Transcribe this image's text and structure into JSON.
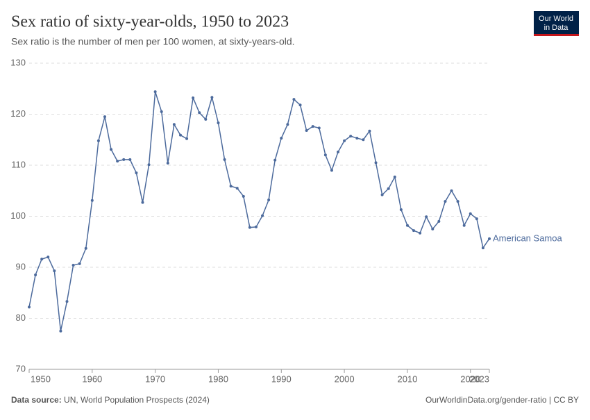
{
  "chart_data": {
    "type": "line",
    "title": "Sex ratio of sixty-year-olds, 1950 to 2023",
    "subtitle": "Sex ratio is the number of men per 100 women, at sixty-years-old.",
    "logo": [
      "Our World",
      "in Data"
    ],
    "source_label": "Data source:",
    "source": "UN, World Population Prospects (2024)",
    "credit": "OurWorldinData.org/gender-ratio | CC BY",
    "x": [
      1950,
      1951,
      1952,
      1953,
      1954,
      1955,
      1956,
      1957,
      1958,
      1959,
      1960,
      1961,
      1962,
      1963,
      1964,
      1965,
      1966,
      1967,
      1968,
      1969,
      1970,
      1971,
      1972,
      1973,
      1974,
      1975,
      1976,
      1977,
      1978,
      1979,
      1980,
      1981,
      1982,
      1983,
      1984,
      1985,
      1986,
      1987,
      1988,
      1989,
      1990,
      1991,
      1992,
      1993,
      1994,
      1995,
      1996,
      1997,
      1998,
      1999,
      2000,
      2001,
      2002,
      2003,
      2004,
      2005,
      2006,
      2007,
      2008,
      2009,
      2010,
      2011,
      2012,
      2013,
      2014,
      2015,
      2016,
      2017,
      2018,
      2019,
      2020,
      2021,
      2022,
      2023
    ],
    "series": [
      {
        "name": "American Samoa",
        "color": "#4c6a9c",
        "values": [
          82.2,
          88.5,
          91.6,
          92.0,
          89.3,
          77.5,
          83.3,
          90.4,
          90.7,
          93.7,
          103.1,
          114.8,
          119.5,
          113.1,
          110.8,
          111.1,
          111.1,
          108.5,
          102.7,
          110.1,
          124.4,
          120.5,
          110.4,
          118.0,
          115.9,
          115.2,
          123.2,
          120.3,
          119.0,
          123.3,
          118.3,
          111.1,
          105.9,
          105.5,
          103.9,
          97.8,
          97.9,
          100.1,
          103.2,
          111.0,
          115.3,
          118.0,
          122.9,
          121.8,
          116.8,
          117.6,
          117.3,
          112.0,
          109.0,
          112.6,
          114.8,
          115.7,
          115.3,
          115.0,
          116.7,
          110.5,
          104.2,
          105.4,
          107.7,
          101.3,
          98.2,
          97.2,
          96.7,
          99.9,
          97.5,
          99.0,
          102.9,
          105.0,
          102.9,
          98.2,
          100.5,
          99.5,
          93.8,
          95.6
        ]
      }
    ],
    "xlim": [
      1950,
      2023
    ],
    "xticks": [
      1950,
      1960,
      1970,
      1980,
      1990,
      2000,
      2010,
      2020,
      2023
    ],
    "ylim": [
      70,
      130
    ],
    "yticks": [
      70,
      80,
      90,
      100,
      110,
      120,
      130
    ],
    "grid": true
  }
}
